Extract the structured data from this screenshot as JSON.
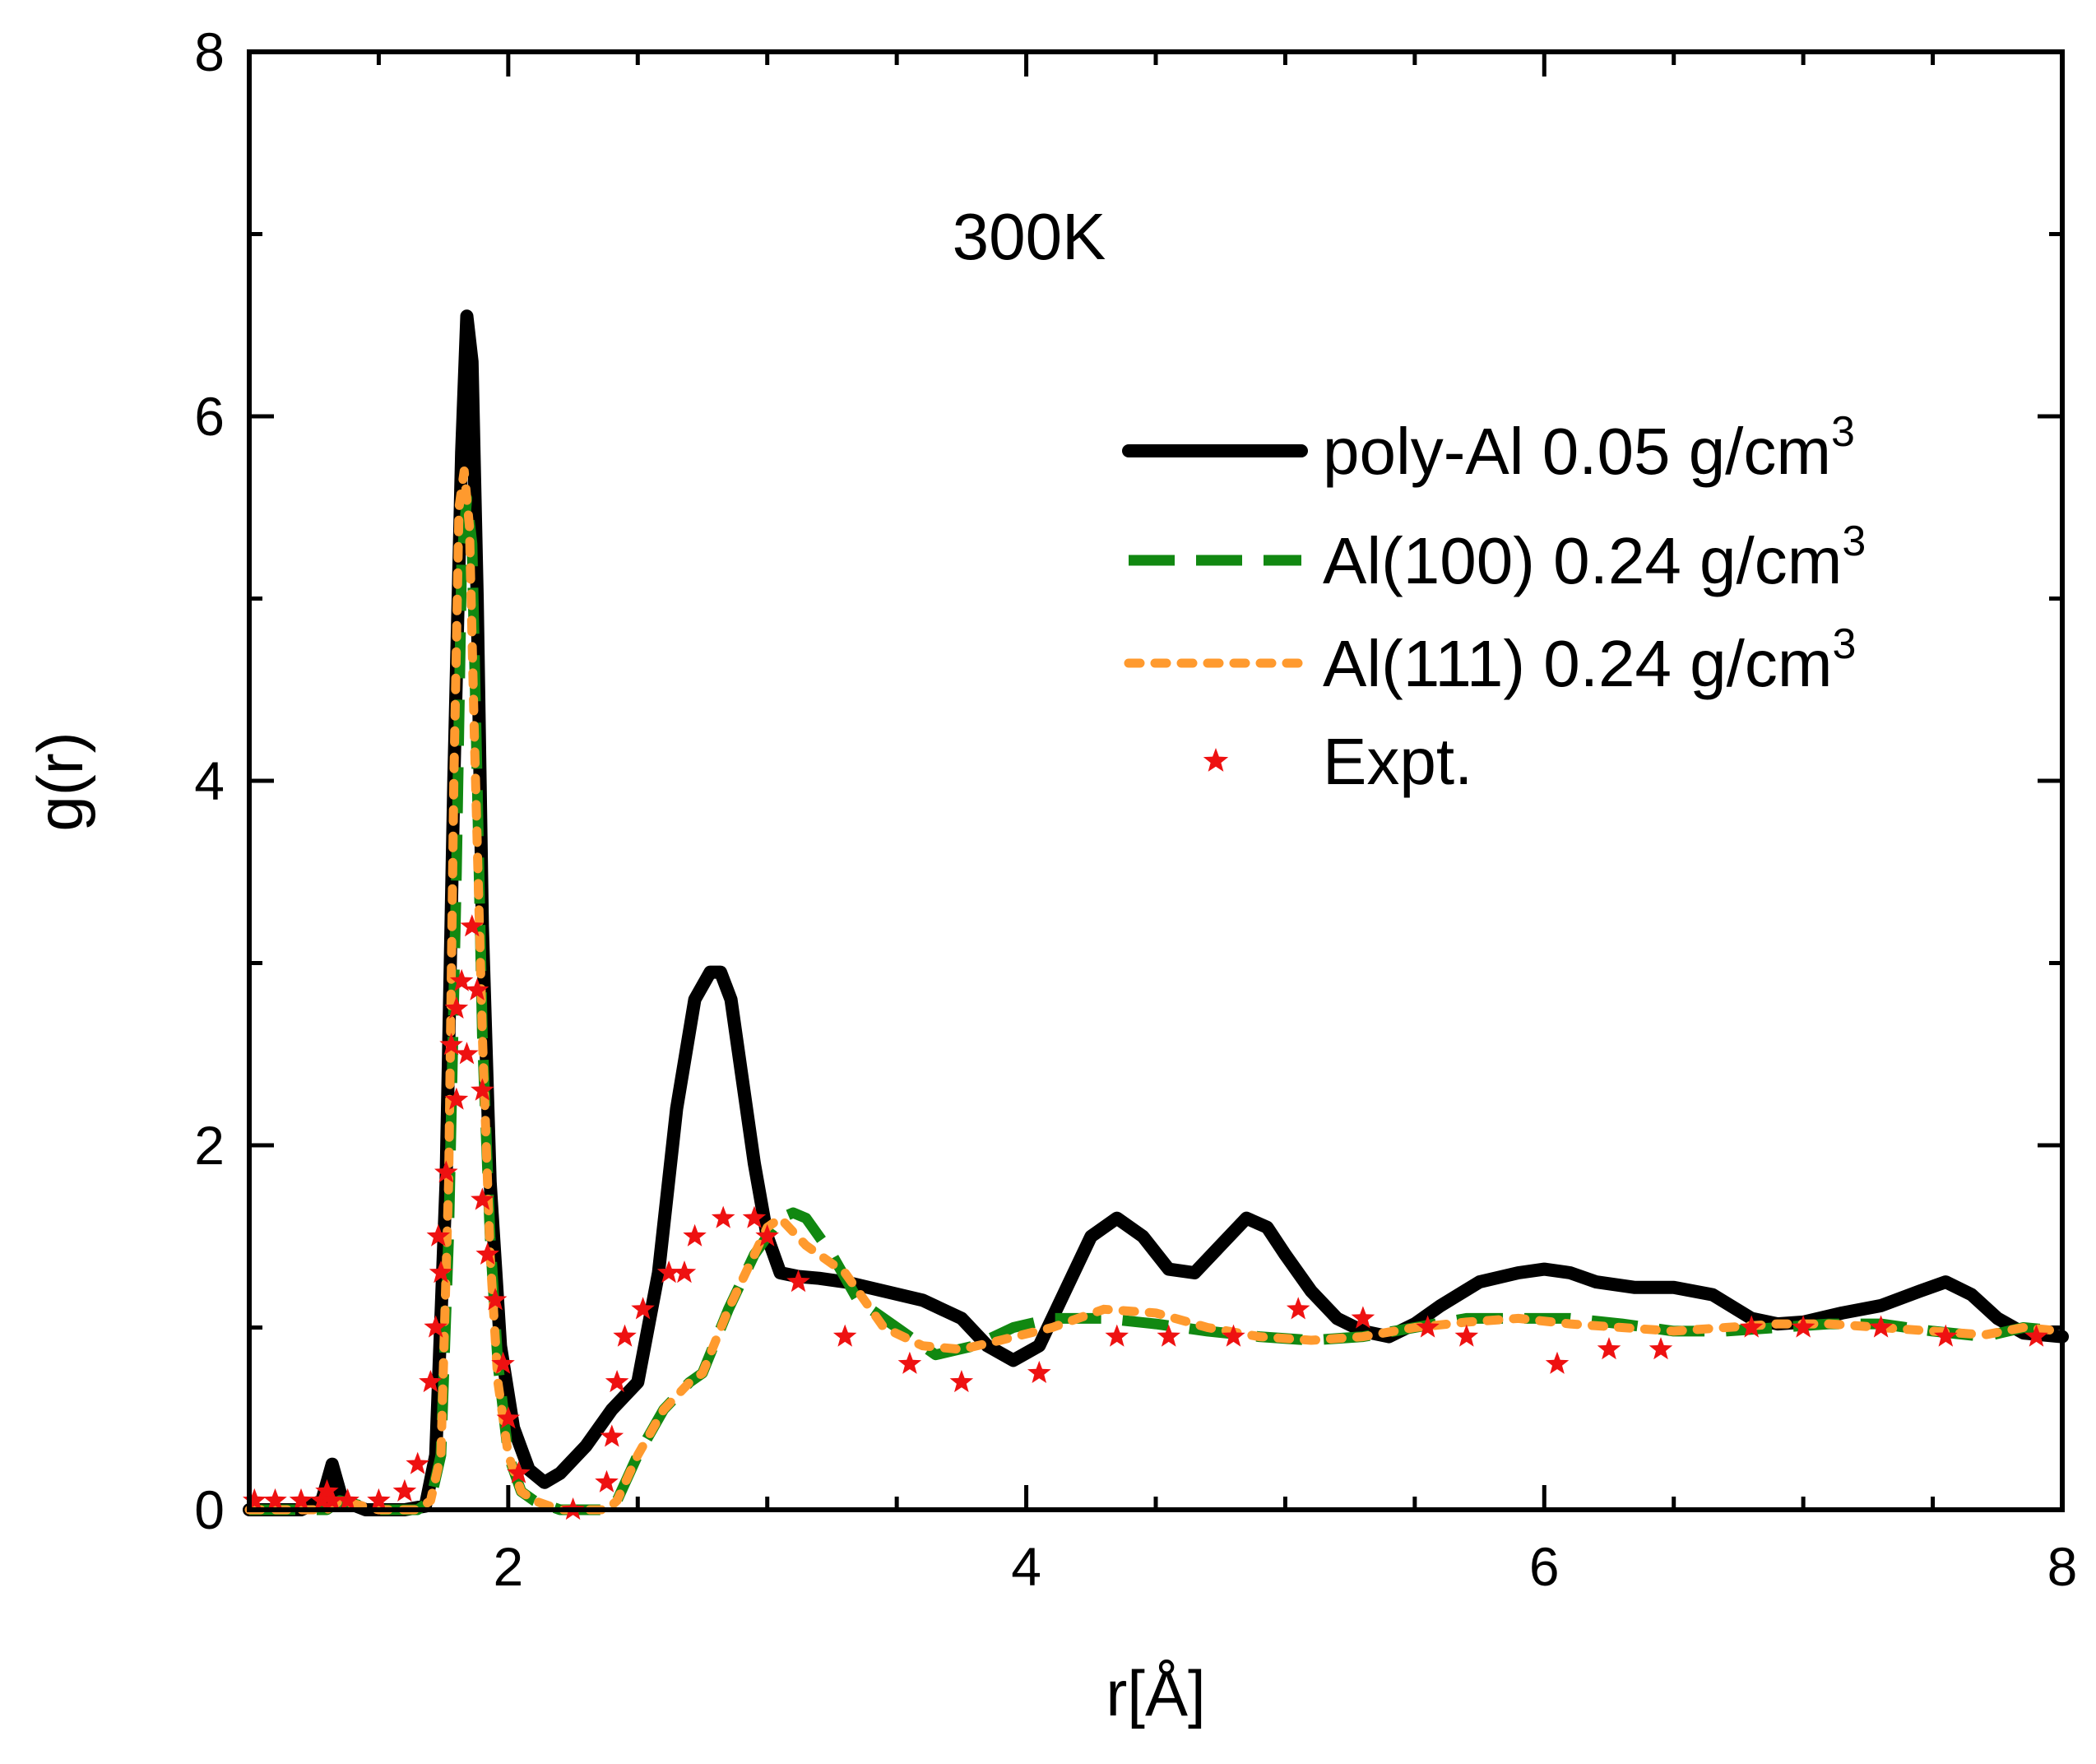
{
  "chart_data": {
    "type": "line",
    "title": "",
    "annotation": "300K",
    "xlabel": "r[Å]",
    "ylabel": "g(r)",
    "xlim": [
      1,
      8
    ],
    "ylim": [
      0,
      8
    ],
    "xticks": [
      2,
      4,
      6,
      8
    ],
    "yticks": [
      0,
      2,
      4,
      6,
      8
    ],
    "grid": false,
    "legend_position": "top-right",
    "series": [
      {
        "name": "poly-Al 0.05 g/cm3",
        "legend_main": "poly-Al 0.05 g/cm",
        "legend_sup": "3",
        "style": "solid",
        "color": "#000000",
        "x": [
          1.0,
          1.2,
          1.28,
          1.32,
          1.36,
          1.45,
          1.6,
          1.68,
          1.72,
          1.76,
          1.79,
          1.82,
          1.84,
          1.86,
          1.88,
          1.9,
          1.93,
          1.97,
          2.02,
          2.08,
          2.14,
          2.2,
          2.3,
          2.4,
          2.5,
          2.58,
          2.65,
          2.72,
          2.78,
          2.82,
          2.86,
          2.9,
          2.95,
          3.0,
          3.05,
          3.12,
          3.2,
          3.3,
          3.45,
          3.6,
          3.75,
          3.85,
          3.95,
          4.05,
          4.15,
          4.25,
          4.35,
          4.45,
          4.55,
          4.65,
          4.75,
          4.85,
          4.93,
          5.0,
          5.1,
          5.2,
          5.3,
          5.4,
          5.5,
          5.6,
          5.75,
          5.9,
          6.0,
          6.1,
          6.2,
          6.35,
          6.5,
          6.65,
          6.8,
          6.9,
          7.0,
          7.15,
          7.3,
          7.45,
          7.55,
          7.65,
          7.75,
          7.85,
          8.0
        ],
        "y": [
          0.0,
          0.0,
          0.05,
          0.25,
          0.05,
          0.0,
          0.0,
          0.02,
          0.3,
          1.8,
          4.0,
          5.8,
          6.55,
          6.3,
          5.0,
          3.2,
          1.8,
          0.9,
          0.45,
          0.22,
          0.15,
          0.2,
          0.35,
          0.55,
          0.7,
          1.3,
          2.2,
          2.8,
          2.95,
          2.95,
          2.8,
          2.4,
          1.9,
          1.5,
          1.3,
          1.28,
          1.27,
          1.25,
          1.2,
          1.15,
          1.05,
          0.9,
          0.82,
          0.9,
          1.2,
          1.5,
          1.6,
          1.5,
          1.32,
          1.3,
          1.45,
          1.6,
          1.55,
          1.4,
          1.2,
          1.05,
          0.98,
          0.95,
          1.02,
          1.12,
          1.25,
          1.3,
          1.32,
          1.3,
          1.25,
          1.22,
          1.22,
          1.18,
          1.05,
          1.02,
          1.03,
          1.08,
          1.12,
          1.2,
          1.25,
          1.18,
          1.05,
          0.97,
          0.95
        ]
      },
      {
        "name": "Al(100) 0.24 g/cm3",
        "legend_main": "Al(100) 0.24 g/cm",
        "legend_sup": "3",
        "style": "dashed",
        "color": "#118811",
        "x": [
          1.0,
          1.3,
          1.35,
          1.5,
          1.65,
          1.7,
          1.74,
          1.77,
          1.8,
          1.82,
          1.84,
          1.86,
          1.88,
          1.9,
          1.93,
          1.96,
          2.0,
          2.05,
          2.1,
          2.2,
          2.3,
          2.38,
          2.42,
          2.5,
          2.6,
          2.7,
          2.75,
          2.85,
          2.95,
          3.05,
          3.1,
          3.15,
          3.25,
          3.35,
          3.5,
          3.65,
          3.8,
          3.95,
          4.1,
          4.3,
          4.5,
          4.7,
          4.9,
          5.1,
          5.3,
          5.5,
          5.7,
          5.9,
          6.1,
          6.3,
          6.5,
          6.7,
          6.9,
          7.1,
          7.3,
          7.5,
          7.7,
          7.85,
          8.0
        ],
        "y": [
          0.0,
          0.0,
          0.05,
          0.0,
          0.0,
          0.05,
          0.3,
          1.5,
          3.5,
          5.2,
          5.55,
          5.3,
          4.0,
          2.6,
          1.5,
          0.8,
          0.3,
          0.1,
          0.05,
          0.0,
          0.0,
          0.0,
          0.05,
          0.3,
          0.55,
          0.7,
          0.75,
          1.1,
          1.4,
          1.6,
          1.63,
          1.6,
          1.4,
          1.15,
          1.0,
          0.85,
          0.9,
          1.0,
          1.05,
          1.05,
          1.02,
          0.98,
          0.95,
          0.93,
          0.95,
          1.0,
          1.05,
          1.05,
          1.05,
          1.02,
          0.98,
          0.98,
          1.0,
          1.02,
          1.02,
          0.98,
          0.95,
          1.0,
          0.98
        ]
      },
      {
        "name": "Al(111) 0.24 g/cm3",
        "legend_main": "Al(111) 0.24 g/cm",
        "legend_sup": "3",
        "style": "dotted",
        "color": "#ff9a2e",
        "x": [
          1.0,
          1.3,
          1.35,
          1.5,
          1.65,
          1.7,
          1.74,
          1.77,
          1.79,
          1.81,
          1.83,
          1.85,
          1.87,
          1.9,
          1.93,
          1.96,
          2.0,
          2.05,
          2.1,
          2.2,
          2.3,
          2.38,
          2.42,
          2.5,
          2.6,
          2.7,
          2.75,
          2.85,
          2.95,
          3.0,
          3.05,
          3.15,
          3.3,
          3.45,
          3.6,
          3.75,
          3.9,
          4.1,
          4.3,
          4.5,
          4.7,
          4.9,
          5.1,
          5.3,
          5.5,
          5.7,
          5.9,
          6.1,
          6.3,
          6.5,
          6.7,
          6.9,
          7.1,
          7.3,
          7.5,
          7.7,
          7.85,
          8.0
        ],
        "y": [
          0.0,
          0.0,
          0.05,
          0.0,
          0.0,
          0.05,
          0.3,
          1.8,
          4.0,
          5.5,
          5.7,
          5.4,
          4.2,
          2.6,
          1.4,
          0.7,
          0.3,
          0.1,
          0.05,
          0.0,
          0.0,
          0.0,
          0.05,
          0.3,
          0.55,
          0.7,
          0.75,
          1.1,
          1.4,
          1.55,
          1.6,
          1.45,
          1.3,
          1.0,
          0.9,
          0.88,
          0.93,
          1.0,
          1.1,
          1.08,
          1.0,
          0.95,
          0.93,
          0.95,
          1.0,
          1.03,
          1.05,
          1.02,
          1.0,
          0.98,
          1.0,
          1.02,
          1.02,
          1.0,
          0.98,
          0.96,
          1.0,
          0.98
        ]
      },
      {
        "name": "Expt.",
        "legend_main": "Expt.",
        "legend_sup": "",
        "style": "markers",
        "color": "#ee1111",
        "x": [
          1.02,
          1.1,
          1.2,
          1.28,
          1.3,
          1.32,
          1.38,
          1.5,
          1.6,
          1.65,
          1.7,
          1.72,
          1.73,
          1.74,
          1.76,
          1.78,
          1.8,
          1.8,
          1.82,
          1.84,
          1.86,
          1.88,
          1.9,
          1.9,
          1.92,
          1.95,
          1.98,
          2.0,
          2.04,
          2.25,
          2.38,
          2.4,
          2.42,
          2.45,
          2.52,
          2.62,
          2.68,
          2.72,
          2.83,
          2.95,
          3.0,
          3.12,
          3.3,
          3.55,
          3.75,
          4.05,
          4.35,
          4.55,
          4.8,
          5.05,
          5.3,
          5.55,
          5.7,
          6.05,
          6.25,
          6.45,
          6.8,
          7.0,
          7.3,
          7.55,
          7.9
        ],
        "y": [
          0.05,
          0.05,
          0.05,
          0.05,
          0.1,
          0.05,
          0.05,
          0.05,
          0.1,
          0.25,
          0.7,
          1.0,
          1.5,
          1.3,
          1.85,
          2.55,
          2.75,
          2.25,
          2.9,
          2.5,
          3.2,
          2.85,
          2.3,
          1.7,
          1.4,
          1.15,
          0.8,
          0.5,
          0.2,
          0.0,
          0.15,
          0.4,
          0.7,
          0.95,
          1.1,
          1.3,
          1.3,
          1.5,
          1.6,
          1.6,
          1.5,
          1.25,
          0.95,
          0.8,
          0.7,
          0.75,
          0.95,
          0.95,
          0.95,
          1.1,
          1.05,
          1.0,
          0.95,
          0.8,
          0.88,
          0.88,
          1.0,
          1.0,
          1.0,
          0.95,
          0.95
        ]
      }
    ]
  }
}
